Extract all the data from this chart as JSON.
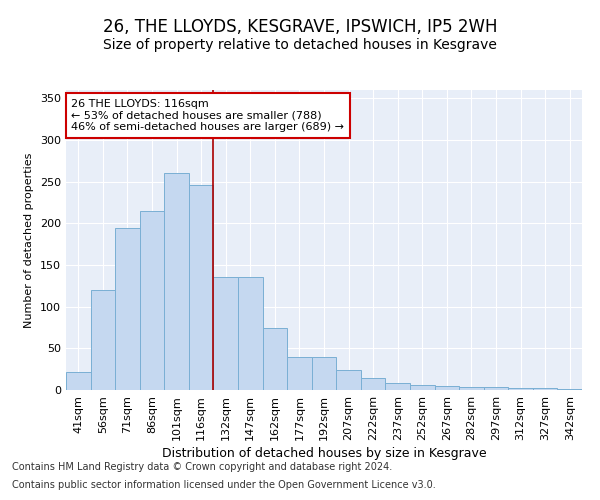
{
  "title1": "26, THE LLOYDS, KESGRAVE, IPSWICH, IP5 2WH",
  "title2": "Size of property relative to detached houses in Kesgrave",
  "xlabel": "Distribution of detached houses by size in Kesgrave",
  "ylabel": "Number of detached properties",
  "categories": [
    "41sqm",
    "56sqm",
    "71sqm",
    "86sqm",
    "101sqm",
    "116sqm",
    "132sqm",
    "147sqm",
    "162sqm",
    "177sqm",
    "192sqm",
    "207sqm",
    "222sqm",
    "237sqm",
    "252sqm",
    "267sqm",
    "282sqm",
    "297sqm",
    "312sqm",
    "327sqm",
    "342sqm"
  ],
  "values": [
    22,
    120,
    194,
    215,
    260,
    246,
    136,
    136,
    74,
    40,
    40,
    24,
    15,
    9,
    6,
    5,
    4,
    4,
    3,
    2,
    1
  ],
  "bar_color": "#c5d8f0",
  "bar_edge_color": "#7aafd4",
  "vline_index": 5,
  "vline_color": "#aa0000",
  "annotation_line1": "26 THE LLOYDS: 116sqm",
  "annotation_line2": "← 53% of detached houses are smaller (788)",
  "annotation_line3": "46% of semi-detached houses are larger (689) →",
  "annotation_box_facecolor": "#ffffff",
  "annotation_box_edgecolor": "#cc0000",
  "ylim": [
    0,
    360
  ],
  "yticks": [
    0,
    50,
    100,
    150,
    200,
    250,
    300,
    350
  ],
  "background_color": "#e8eef8",
  "grid_color": "#ffffff",
  "footer_line1": "Contains HM Land Registry data © Crown copyright and database right 2024.",
  "footer_line2": "Contains public sector information licensed under the Open Government Licence v3.0.",
  "title1_fontsize": 12,
  "title2_fontsize": 10,
  "xlabel_fontsize": 9,
  "ylabel_fontsize": 8,
  "tick_fontsize": 8,
  "annotation_fontsize": 8,
  "footer_fontsize": 7
}
